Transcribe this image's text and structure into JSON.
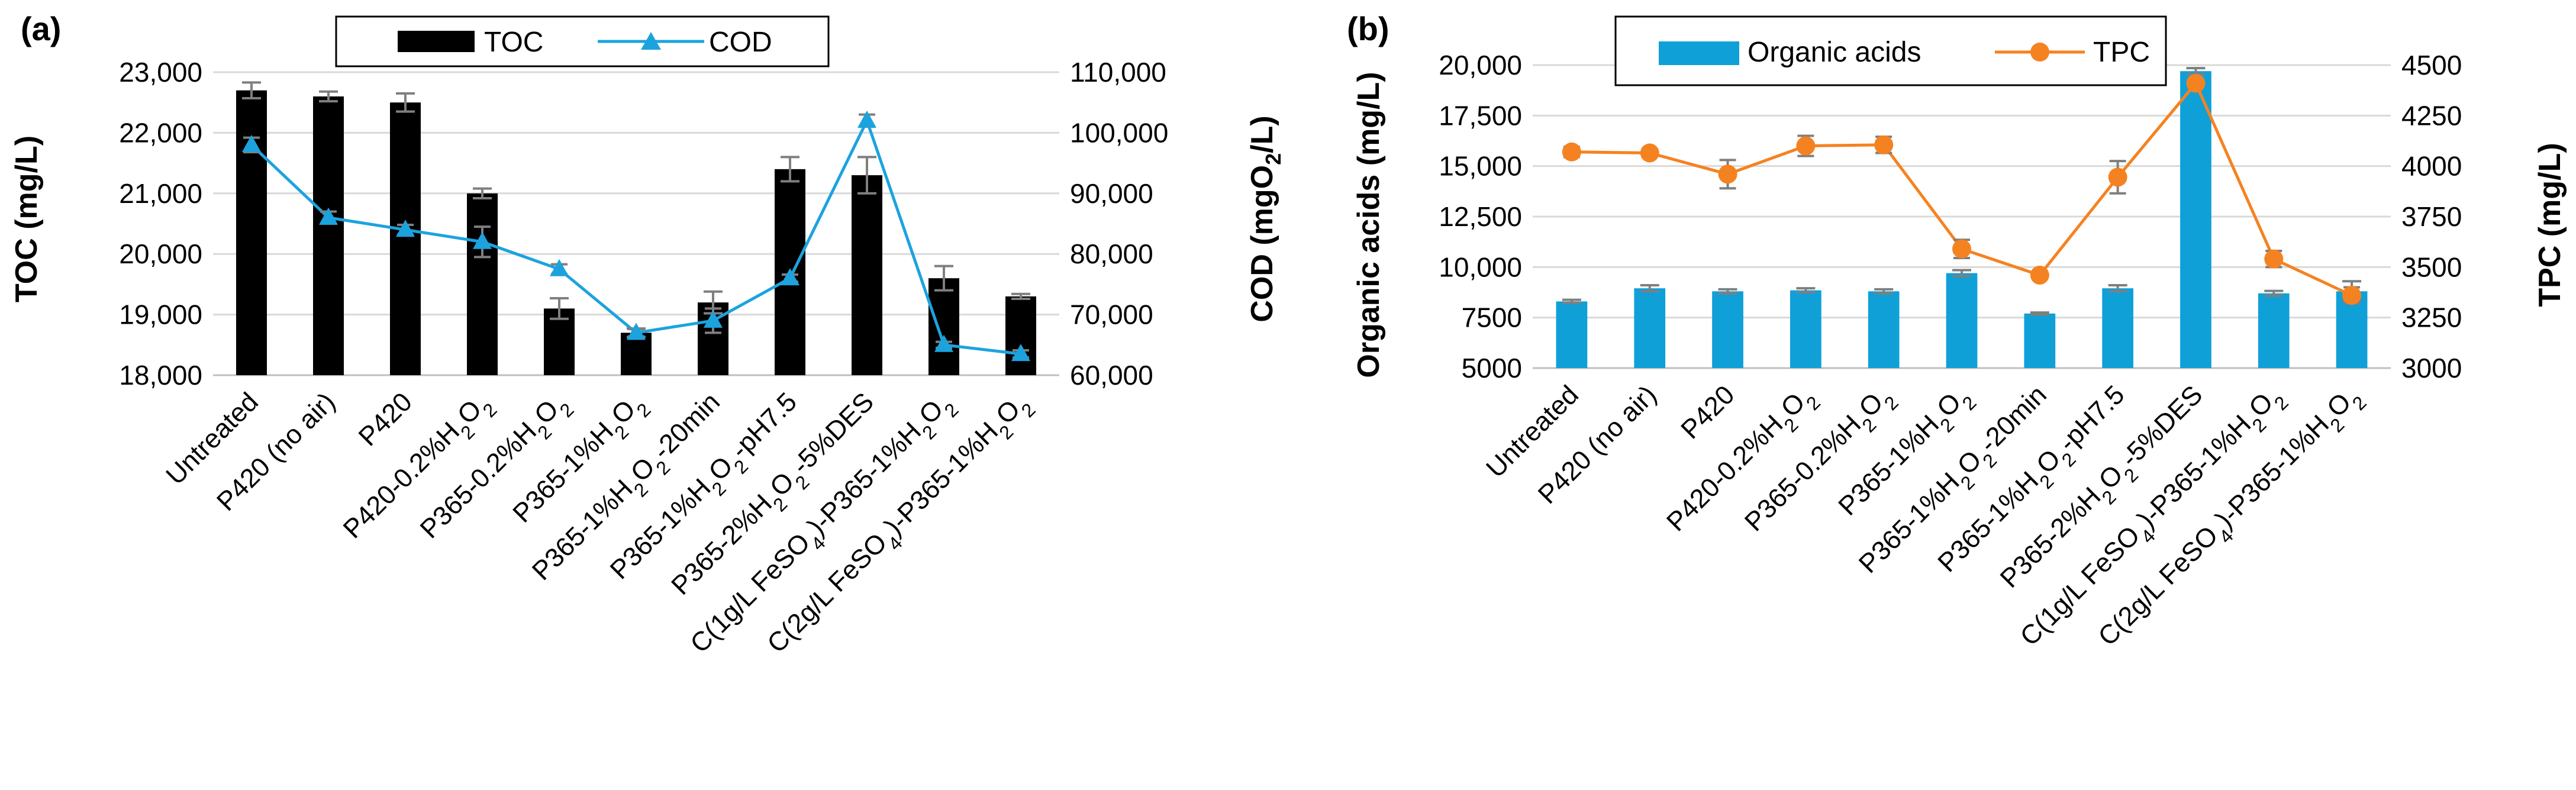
{
  "chart_data": [
    {
      "panel_label": "(a)",
      "type": "bar+line",
      "categories": [
        "Untreated",
        "P420 (no air)",
        "P420",
        "P420-0.2%H₂O₂",
        "P365-0.2%H₂O₂",
        "P365-1%H₂O₂",
        "P365-1%H₂O₂-20min",
        "P365-1%H₂O₂-pH7.5",
        "P365-2%H₂O₂-5%DES",
        "C(1g/L FeSO₄)-P365-1%H₂O₂",
        "C(2g/L FeSO₄)-P365-1%H₂O₂"
      ],
      "bar_series": {
        "name": "TOC",
        "color": "#000000",
        "values": [
          22700,
          22600,
          22500,
          21000,
          19100,
          18700,
          19200,
          21400,
          21300,
          19600,
          19300
        ],
        "errors": [
          130,
          80,
          150,
          80,
          170,
          70,
          180,
          200,
          300,
          200,
          40
        ]
      },
      "line_series": {
        "name": "COD",
        "color": "#1CA3DE",
        "marker": "triangle",
        "values": [
          98000,
          86000,
          84000,
          82000,
          77500,
          67000,
          69000,
          76000,
          102000,
          65000,
          63500
        ],
        "errors": [
          1200,
          1000,
          800,
          2500,
          800,
          600,
          2000,
          600,
          1000,
          500,
          600
        ]
      },
      "y_left": {
        "label": "TOC (mg/L)",
        "ylim": [
          18000,
          23000
        ],
        "ticks": [
          "18,000",
          "19,000",
          "20,000",
          "21,000",
          "22,000",
          "23,000"
        ]
      },
      "y_right": {
        "label_main": "COD (mgO",
        "label_sub": "2",
        "label_end": "/L)",
        "ylim": [
          60000,
          110000
        ],
        "ticks": [
          "60,000",
          "70,000",
          "80,000",
          "90,000",
          "100,000",
          "110,000"
        ]
      },
      "legend": {
        "position": "top-center",
        "entries": [
          "TOC",
          "COD"
        ]
      }
    },
    {
      "panel_label": "(b)",
      "type": "bar+line",
      "categories": [
        "Untreated",
        "P420 (no air)",
        "P420",
        "P420-0.2%H₂O₂",
        "P365-0.2%H₂O₂",
        "P365-1%H₂O₂",
        "P365-1%H₂O₂-20min",
        "P365-1%H₂O₂-pH7.5",
        "P365-2%H₂O₂-5%DES",
        "C(1g/L FeSO₄)-P365-1%H₂O₂",
        "C(2g/L FeSO₄)-P365-1%H₂O₂"
      ],
      "bar_series": {
        "name": "Organic acids",
        "color": "#0FA0D8",
        "values": [
          8300,
          8950,
          8800,
          8850,
          8800,
          9700,
          7700,
          8950,
          19700,
          8700,
          8800
        ],
        "errors": [
          80,
          150,
          100,
          100,
          100,
          150,
          50,
          150,
          150,
          120,
          500
        ]
      },
      "line_series": {
        "name": "TPC",
        "color": "#F58220",
        "marker": "circle",
        "values": [
          4070,
          4065,
          3960,
          4100,
          4105,
          3590,
          3460,
          3945,
          4410,
          3540,
          3360
        ],
        "errors": [
          25,
          10,
          70,
          50,
          40,
          45,
          10,
          80,
          10,
          40,
          40
        ]
      },
      "y_left": {
        "label": "Organic acids (mg/L)",
        "ylim": [
          5000,
          20000
        ],
        "ticks": [
          "5000",
          "7500",
          "10,000",
          "12,500",
          "15,000",
          "17,500",
          "20,000"
        ]
      },
      "y_right": {
        "label": "TPC (mg/L)",
        "ylim": [
          3000,
          4500
        ],
        "ticks": [
          "3000",
          "3250",
          "3500",
          "3750",
          "4000",
          "4250",
          "4500"
        ]
      },
      "legend": {
        "position": "top-center",
        "entries": [
          "Organic acids",
          "TPC"
        ]
      }
    }
  ]
}
